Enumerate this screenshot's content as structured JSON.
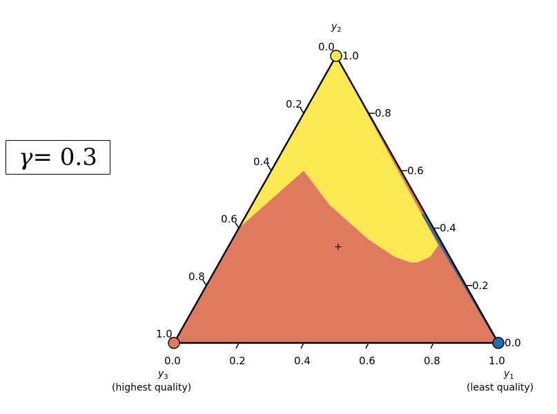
{
  "annotation": {
    "symbol": "γ",
    "rest": " = 0.3"
  },
  "chart_data": {
    "type": "ternary-region",
    "vertices": {
      "top": {
        "label": "y",
        "sub": "2",
        "desc": "",
        "color": "#FBE852"
      },
      "left": {
        "label": "y",
        "sub": "3",
        "desc": "(highest quality)",
        "color": "#E07A5F"
      },
      "right": {
        "label": "y",
        "sub": "1",
        "desc": "(least quality)",
        "color": "#1D6FB5"
      }
    },
    "ticks": [
      "0.0",
      "0.2",
      "0.4",
      "0.6",
      "0.8",
      "1.0"
    ],
    "regions": [
      {
        "name": "y2-region",
        "color": "#FBE852"
      },
      {
        "name": "y3-region",
        "color": "#E07A5F"
      },
      {
        "name": "y1-region",
        "color": "#1D6FB5"
      }
    ],
    "boundary_y2_region": [
      [
        0.4,
        0.6
      ],
      [
        0.48,
        0.48
      ],
      [
        0.6,
        0.36
      ],
      [
        0.68,
        0.3
      ],
      [
        0.73,
        0.28
      ],
      [
        0.75,
        0.28
      ],
      [
        0.79,
        0.3
      ],
      [
        0.815,
        0.34
      ]
    ],
    "center_marker": "+"
  }
}
